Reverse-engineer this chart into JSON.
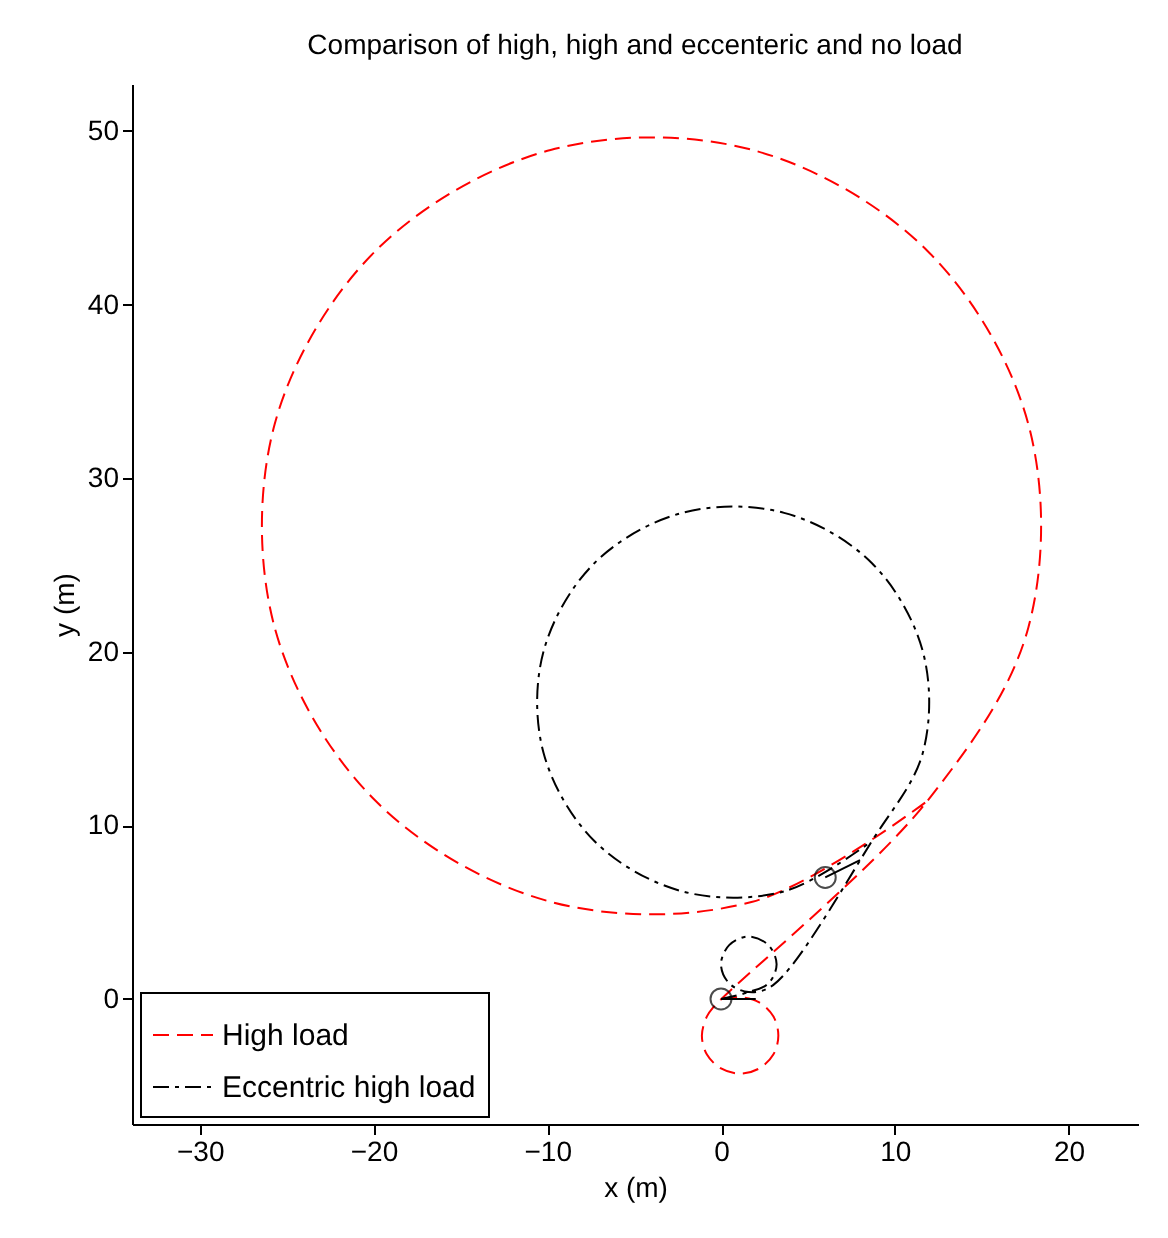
{
  "chart_data": {
    "type": "line",
    "title": "Comparison of high, high and eccenteric and no load",
    "xlabel": "x (m)",
    "ylabel": "y (m)",
    "xlim": [
      -33.9,
      24
    ],
    "ylim": [
      -7.2,
      52.7
    ],
    "xticks": [
      -30,
      -20,
      -10,
      0,
      10,
      20
    ],
    "yticks": [
      0,
      10,
      20,
      30,
      40,
      50
    ],
    "grid": false,
    "legend": "bottom left",
    "series": [
      {
        "name": "High load",
        "color": "#ff0000",
        "line_style": "dashed",
        "x": [
          0,
          1.1,
          2.2,
          3.01,
          3.3,
          3.01,
          2.2,
          1.1,
          0,
          -0.81,
          -1.1,
          -0.81,
          -0.46,
          11.87,
          17.69,
          17.69,
          11.87,
          1.81,
          -9.81,
          -19.87,
          -25.69,
          -25.69,
          -19.87,
          -9.81,
          1.81,
          11.87
        ],
        "values": [
          0,
          0.1,
          -0.2,
          -1.0,
          -2.1,
          -3.2,
          -4.0,
          -4.3,
          -4.0,
          -3.2,
          -2.1,
          -1.0,
          -0.5,
          11.4,
          21.4,
          33.1,
          43.1,
          48.9,
          48.9,
          43.1,
          33.1,
          21.4,
          11.4,
          5.6,
          5.6,
          11.4
        ]
      },
      {
        "name": "Eccentric high load",
        "color": "#000000",
        "line_style": "dashdot",
        "x": [
          0,
          1.6,
          2.73,
          3.2,
          2.73,
          1.6,
          0.47,
          0,
          0.47,
          1.6,
          3.0,
          8.69,
          11.62,
          11.62,
          8.69,
          3.63,
          -2.23,
          -7.29,
          -10.22,
          -10.22,
          -7.29,
          -2.23,
          3.63,
          8.69
        ],
        "values": [
          0,
          0.4,
          0.9,
          2,
          3.1,
          3.6,
          3.1,
          2,
          0.9,
          0.4,
          0.8,
          9.1,
          14.2,
          20.0,
          25.1,
          28.0,
          28.0,
          25.1,
          20.0,
          14.2,
          9.1,
          6.2,
          6.2,
          9.1
        ]
      },
      {
        "color": "#000000",
        "line_style": "solid",
        "x": [
          0,
          2
        ],
        "values": [
          0,
          0
        ]
      },
      {
        "color": "#000000",
        "line_style": "solid",
        "x": [
          6,
          8
        ],
        "values": [
          7,
          8
        ]
      },
      {
        "type": "scatter",
        "color": "#000000",
        "marker": "circle",
        "x": [
          0,
          6
        ],
        "values": [
          0,
          7
        ]
      }
    ]
  }
}
